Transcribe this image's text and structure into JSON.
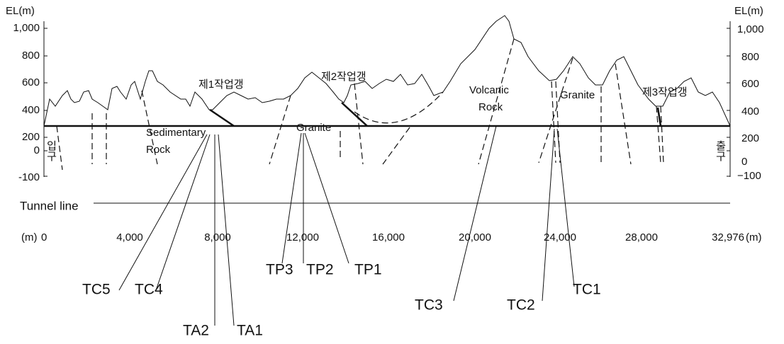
{
  "axis": {
    "left_title": "EL(m)",
    "right_title": "EL(m)",
    "left_ticks": [
      "1,000",
      "800",
      "600",
      "400",
      "200",
      "0",
      "-100"
    ],
    "right_ticks": [
      "1,000",
      "800",
      "600",
      "400",
      "200",
      "0",
      "−100"
    ],
    "x_unit_left": "(m)",
    "x_unit_right": "(m)",
    "x_ticks": [
      "0",
      "4,000",
      "8,000",
      "12,000",
      "16,000",
      "20,000",
      "24,000",
      "28,000",
      "32,976"
    ]
  },
  "labels": {
    "entrance": "입구",
    "exit": "출구",
    "tunnel_line": "Tunnel line"
  },
  "regions": [
    {
      "lines": [
        "Sedimentary",
        "Rock"
      ]
    },
    {
      "lines": [
        "Granite"
      ]
    },
    {
      "lines": [
        "Volcanic",
        "Rock"
      ]
    },
    {
      "lines": [
        "Granite"
      ]
    }
  ],
  "adits": [
    "제1작업갱",
    "제2작업갱",
    "제3작업갱"
  ],
  "boreholes": [
    "TC5",
    "TC4",
    "TA2",
    "TA1",
    "TP3",
    "TP2",
    "TP1",
    "TC3",
    "TC2",
    "TC1"
  ]
}
